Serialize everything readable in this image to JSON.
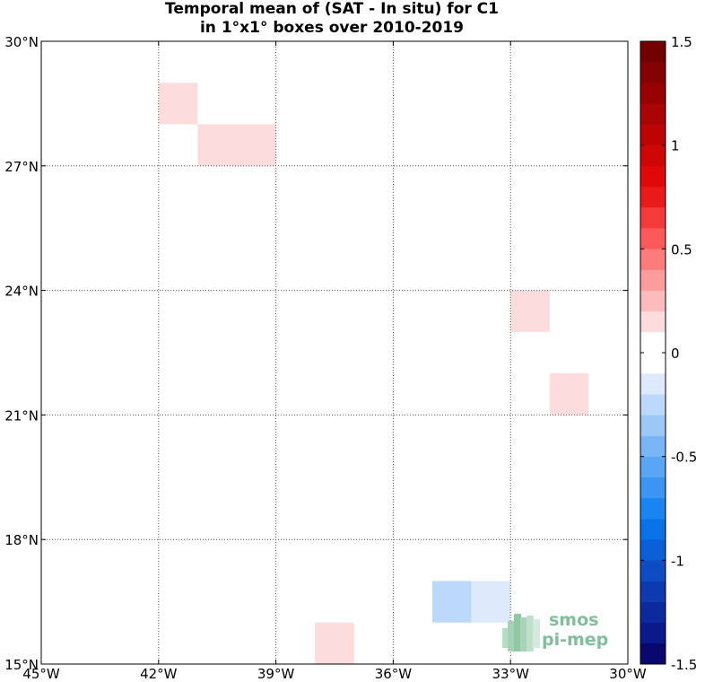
{
  "title": {
    "line1": "Temporal mean of (SAT - In situ) for C1",
    "line2": "in 1°x1° boxes over 2010-2019"
  },
  "map": {
    "lon_range": [
      -45,
      -30
    ],
    "lat_range": [
      15,
      30
    ],
    "grid": "dotted",
    "lon_ticks": [
      {
        "value": -45,
        "label": "45°W"
      },
      {
        "value": -42,
        "label": "42°W"
      },
      {
        "value": -39,
        "label": "39°W"
      },
      {
        "value": -36,
        "label": "36°W"
      },
      {
        "value": -33,
        "label": "33°W"
      },
      {
        "value": -30,
        "label": "30°W"
      }
    ],
    "lat_ticks": [
      {
        "value": 15,
        "label": "15°N"
      },
      {
        "value": 18,
        "label": "18°N"
      },
      {
        "value": 21,
        "label": "21°N"
      },
      {
        "value": 24,
        "label": "24°N"
      },
      {
        "value": 27,
        "label": "27°N"
      },
      {
        "value": 30,
        "label": "30°N"
      }
    ],
    "cells": [
      {
        "lon": -42,
        "lat": 28,
        "value": 0.15
      },
      {
        "lon": -41,
        "lat": 27,
        "value": 0.15
      },
      {
        "lon": -40,
        "lat": 27,
        "value": 0.15
      },
      {
        "lon": -33,
        "lat": 23,
        "value": 0.15
      },
      {
        "lon": -32,
        "lat": 21,
        "value": 0.15
      },
      {
        "lon": -35,
        "lat": 16,
        "value": -0.25
      },
      {
        "lon": -34,
        "lat": 16,
        "value": -0.15
      },
      {
        "lon": -38,
        "lat": 15,
        "value": 0.15
      }
    ]
  },
  "colorbar": {
    "min": -1.5,
    "max": 1.5,
    "ticks": [
      {
        "value": 1.5,
        "label": "1.5"
      },
      {
        "value": 1,
        "label": "1"
      },
      {
        "value": 0.5,
        "label": "0.5"
      },
      {
        "value": 0,
        "label": "0"
      },
      {
        "value": -0.5,
        "label": "-0.5"
      },
      {
        "value": -1,
        "label": "-1"
      },
      {
        "value": -1.5,
        "label": "-1.5"
      }
    ],
    "colors": [
      "#08086e",
      "#0a1a8a",
      "#0c2a9e",
      "#0e3ab0",
      "#0e4cc4",
      "#0a60d8",
      "#0a72e8",
      "#1a84f0",
      "#3a96f2",
      "#5aa6f4",
      "#7ab6f6",
      "#9cc8f8",
      "#bcd8fa",
      "#dceafc",
      "#ffffff",
      "#ffffff",
      "#fcdcdc",
      "#fcbcbc",
      "#fc9c9c",
      "#fc7c7c",
      "#fc5a5a",
      "#f43a3a",
      "#ea1a1a",
      "#e00808",
      "#ce0606",
      "#bc0404",
      "#aa0404",
      "#980202",
      "#860202",
      "#720000"
    ]
  },
  "logo": {
    "line1": "smos",
    "line2": "pi-mep"
  }
}
